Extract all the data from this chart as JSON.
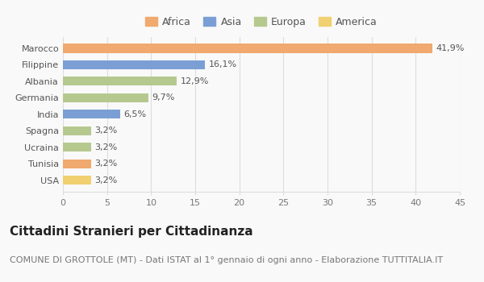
{
  "categories": [
    "Marocco",
    "Filippine",
    "Albania",
    "Germania",
    "India",
    "Spagna",
    "Ucraina",
    "Tunisia",
    "USA"
  ],
  "values": [
    41.9,
    16.1,
    12.9,
    9.7,
    6.5,
    3.2,
    3.2,
    3.2,
    3.2
  ],
  "bar_colors": [
    "#f0a96e",
    "#7b9fd4",
    "#b5c98e",
    "#b5c98e",
    "#7b9fd4",
    "#b5c98e",
    "#b5c98e",
    "#f0a96e",
    "#f0d070"
  ],
  "labels": [
    "41,9%",
    "16,1%",
    "12,9%",
    "9,7%",
    "6,5%",
    "3,2%",
    "3,2%",
    "3,2%",
    "3,2%"
  ],
  "legend_labels": [
    "Africa",
    "Asia",
    "Europa",
    "America"
  ],
  "legend_colors": [
    "#f0a96e",
    "#7b9fd4",
    "#b5c98e",
    "#f0d070"
  ],
  "title": "Cittadini Stranieri per Cittadinanza",
  "subtitle": "COMUNE DI GROTTOLE (MT) - Dati ISTAT al 1° gennaio di ogni anno - Elaborazione TUTTITALIA.IT",
  "xlim": [
    0,
    45
  ],
  "xticks": [
    0,
    5,
    10,
    15,
    20,
    25,
    30,
    35,
    40,
    45
  ],
  "background_color": "#f9f9f9",
  "grid_color": "#dddddd",
  "title_fontsize": 11,
  "subtitle_fontsize": 8,
  "label_fontsize": 8,
  "tick_fontsize": 8,
  "legend_fontsize": 9
}
